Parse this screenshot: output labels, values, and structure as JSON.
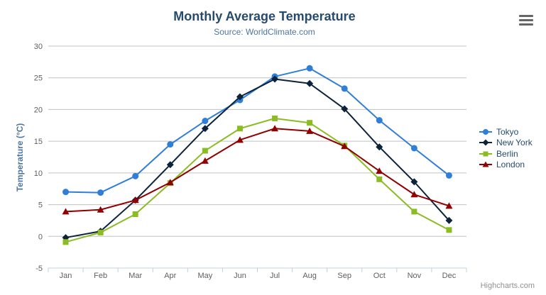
{
  "chart_data": {
    "type": "line",
    "title": "Monthly Average Temperature",
    "subtitle": "Source: WorldClimate.com",
    "categories": [
      "Jan",
      "Feb",
      "Mar",
      "Apr",
      "May",
      "Jun",
      "Jul",
      "Aug",
      "Sep",
      "Oct",
      "Nov",
      "Dec"
    ],
    "xlabel": "",
    "ylabel": "Temperature (°C)",
    "ylim": [
      -5,
      30
    ],
    "yticks": [
      -5,
      0,
      5,
      10,
      15,
      20,
      25,
      30
    ],
    "grid": true,
    "legend_position": "right",
    "series": [
      {
        "name": "Tokyo",
        "color": "#2f7ed8",
        "marker": "circle",
        "values": [
          7.0,
          6.9,
          9.5,
          14.5,
          18.2,
          21.5,
          25.2,
          26.5,
          23.3,
          18.3,
          13.9,
          9.6
        ]
      },
      {
        "name": "New York",
        "color": "#0d233a",
        "marker": "diamond",
        "values": [
          -0.2,
          0.8,
          5.7,
          11.3,
          17.0,
          22.0,
          24.8,
          24.1,
          20.1,
          14.1,
          8.6,
          2.5
        ]
      },
      {
        "name": "Berlin",
        "color": "#8bbc21",
        "marker": "square",
        "values": [
          -0.9,
          0.6,
          3.5,
          8.4,
          13.5,
          17.0,
          18.6,
          17.9,
          14.3,
          9.0,
          3.9,
          1.0
        ]
      },
      {
        "name": "London",
        "color": "#910000",
        "marker": "triangle",
        "values": [
          3.9,
          4.2,
          5.7,
          8.5,
          11.9,
          15.2,
          17.0,
          16.6,
          14.2,
          10.3,
          6.6,
          4.8
        ]
      }
    ],
    "colors": {
      "title": "#274b6d",
      "subtitle": "#4d759e",
      "axis_label": "#606060",
      "axis_title": "#4d759e",
      "grid_line": "#c0c0c0",
      "axis_line": "#c0d0e0",
      "legend_text": "#274b6d",
      "credits_text": "#909090",
      "export_icon": "#666666"
    }
  },
  "credits": {
    "label": "Highcharts.com"
  },
  "export_menu": {
    "icon": "hamburger-menu-icon"
  }
}
